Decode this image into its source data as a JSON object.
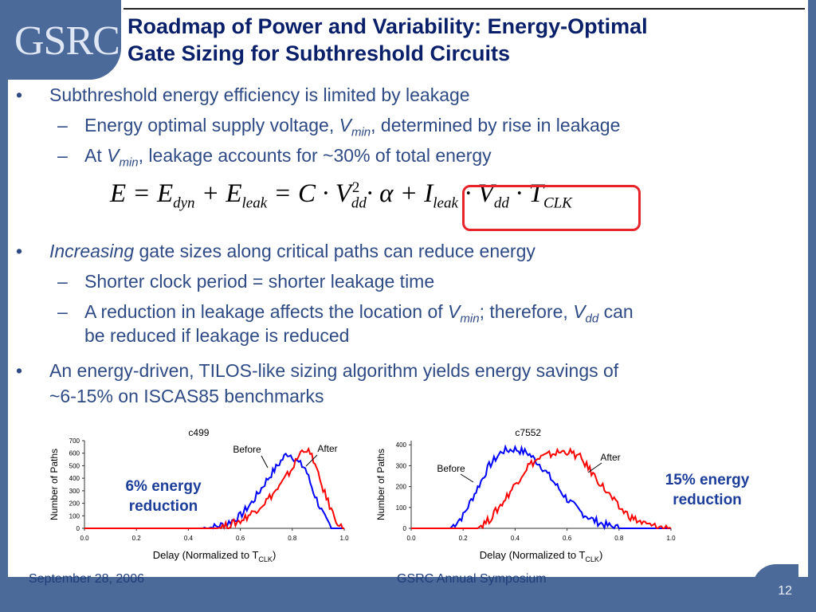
{
  "slide": {
    "logo": "GSRC",
    "title_line1": "Roadmap of Power and Variability: Energy-Optimal",
    "title_line2": "Gate Sizing for Subthreshold Circuits",
    "bullets": [
      {
        "text": "Subthreshold energy efficiency is limited by leakage"
      },
      {
        "text_a": "Energy optimal supply voltage, ",
        "v": "V",
        "sub": "min",
        "text_b": ", determined by rise in leakage"
      },
      {
        "text_a": "At ",
        "v": "V",
        "sub": "min",
        "text_b": ", leakage accounts for ~30% of total energy"
      },
      {
        "italic": "Increasing",
        "text": " gate sizes along critical paths can reduce energy"
      },
      {
        "text": "Shorter clock period = shorter leakage time"
      },
      {
        "text_a": "A reduction in leakage affects the location of ",
        "v1": "V",
        "sub1": "min",
        "text_b": "; therefore, ",
        "v2": "V",
        "sub2": "dd",
        "text_c": " can",
        "line2": "be reduced if leakage is reduced"
      },
      {
        "line1": "An energy-driven, TILOS-like sizing algorithm yields energy savings of",
        "line2": "~6-15% on ISCAS85 benchmarks"
      }
    ],
    "equation": "E = E_dyn + E_leak = C · V_dd^2 · α + I_leak · V_dd · T_CLK",
    "footer_date": "September 28, 2006",
    "footer_event": "GSRC Annual Symposium",
    "page_number": "12"
  },
  "chart_data": [
    {
      "type": "line",
      "title": "c499",
      "xlabel": "Delay (Normalized to T",
      "xlabel_sub": "CLK",
      "xlabel_end": ")",
      "ylabel": "Number of Paths",
      "xlim": [
        0.0,
        1.0
      ],
      "ylim": [
        0,
        700
      ],
      "xticks": [
        "0.0",
        "0.2",
        "0.4",
        "0.6",
        "0.8",
        "1.0"
      ],
      "yticks": [
        "0",
        "100",
        "200",
        "300",
        "400",
        "500",
        "600",
        "700"
      ],
      "annotation": "6% energy reduction",
      "series": [
        {
          "name": "Before",
          "color": "#0000ff",
          "x": [
            0.45,
            0.5,
            0.55,
            0.6,
            0.65,
            0.7,
            0.75,
            0.78,
            0.8,
            0.82,
            0.85,
            0.88,
            0.9,
            0.93,
            0.95
          ],
          "y": [
            0,
            10,
            40,
            100,
            220,
            380,
            520,
            600,
            580,
            530,
            480,
            300,
            200,
            60,
            0
          ]
        },
        {
          "name": "After",
          "color": "#ff0000",
          "x": [
            0.5,
            0.55,
            0.6,
            0.65,
            0.7,
            0.75,
            0.8,
            0.83,
            0.85,
            0.88,
            0.9,
            0.93,
            0.96,
            0.99
          ],
          "y": [
            0,
            20,
            60,
            130,
            220,
            330,
            480,
            600,
            640,
            560,
            420,
            250,
            100,
            0
          ]
        }
      ]
    },
    {
      "type": "line",
      "title": "c7552",
      "xlabel": "Delay (Normalized to T",
      "xlabel_sub": "CLK",
      "xlabel_end": ")",
      "ylabel": "Number of Paths",
      "xlim": [
        0.0,
        1.0
      ],
      "ylim": [
        0,
        420
      ],
      "xticks": [
        "0.0",
        "0.2",
        "0.4",
        "0.6",
        "0.8",
        "1.0"
      ],
      "yticks": [
        "0",
        "100",
        "200",
        "300",
        "400"
      ],
      "annotation": "15% energy reduction",
      "series": [
        {
          "name": "Before",
          "color": "#0000ff",
          "x": [
            0.15,
            0.2,
            0.25,
            0.3,
            0.35,
            0.4,
            0.45,
            0.5,
            0.55,
            0.6,
            0.65,
            0.7,
            0.75,
            0.8
          ],
          "y": [
            0,
            60,
            180,
            300,
            370,
            380,
            360,
            300,
            220,
            140,
            80,
            40,
            15,
            0
          ]
        },
        {
          "name": "After",
          "color": "#ff0000",
          "x": [
            0.25,
            0.3,
            0.35,
            0.4,
            0.45,
            0.5,
            0.55,
            0.6,
            0.65,
            0.7,
            0.75,
            0.8,
            0.85,
            0.9,
            0.95,
            1.0
          ],
          "y": [
            0,
            40,
            120,
            210,
            300,
            340,
            360,
            370,
            340,
            260,
            180,
            100,
            50,
            20,
            5,
            0
          ]
        }
      ]
    }
  ]
}
